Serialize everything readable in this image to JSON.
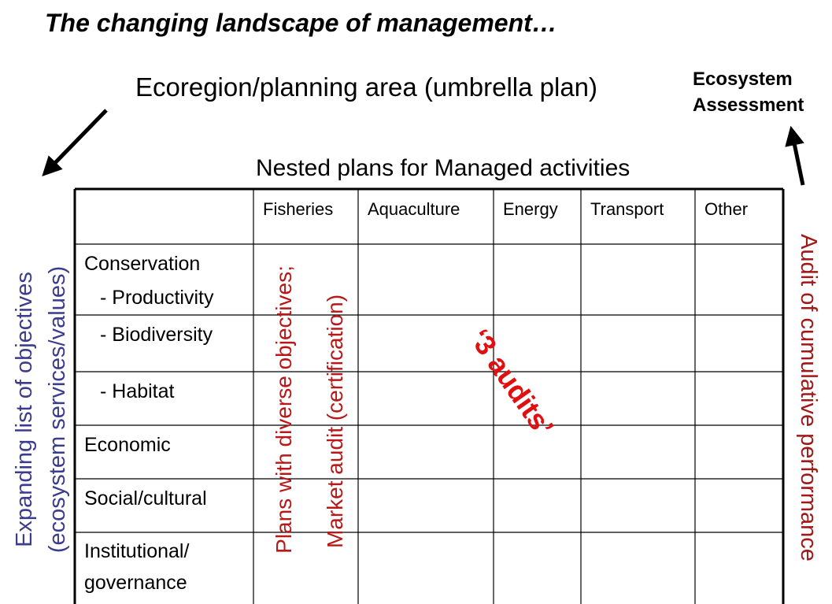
{
  "title": "The changing landscape of management…",
  "umbrella": "Ecoregion/planning area (umbrella plan)",
  "assessment": [
    "Ecosystem",
    "Assessment"
  ],
  "nested": "Nested plans for Managed activities",
  "table": {
    "columns": [
      "Fisheries",
      "Aquaculture",
      "Energy",
      "Transport",
      "Other"
    ],
    "rows": [
      [
        "Conservation",
        "- Productivity"
      ],
      [
        "- Biodiversity"
      ],
      [
        "- Habitat"
      ],
      [
        "Economic"
      ],
      [
        "Social/cultural"
      ],
      [
        "Institutional/",
        "governance"
      ]
    ]
  },
  "objectives": [
    "Expanding list of objectives",
    "(ecosystem services/values)"
  ],
  "plans": [
    "Plans with diverse objectives;",
    "Market audit (certification)"
  ],
  "cumulative": "Audit of cumulative performance",
  "audits": "‘3 audits’"
}
